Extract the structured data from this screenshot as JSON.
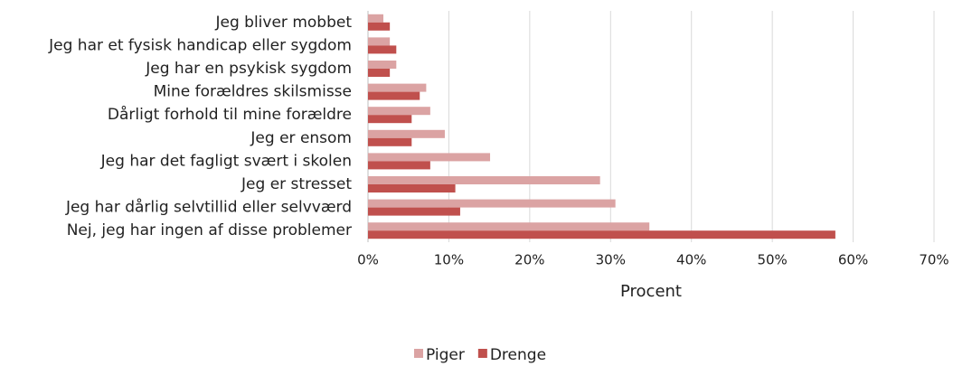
{
  "chart_data": {
    "type": "hbar",
    "categories": [
      "Jeg bliver mobbet",
      "Jeg har et fysisk handicap eller sygdom",
      "Jeg har en psykisk sygdom",
      "Mine forældres skilsmisse",
      "Dårligt forhold til mine forældre",
      "Jeg er ensom",
      "Jeg har det fagligt svært i skolen",
      "Jeg er stresset",
      "Jeg har dårlig selvtillid eller selvværd",
      "Nej, jeg har ingen af disse problemer"
    ],
    "series": [
      {
        "name": "Piger",
        "color": "#dba3a3",
        "values": [
          1.9,
          2.7,
          3.5,
          7.2,
          7.7,
          9.5,
          15.1,
          28.7,
          30.6,
          34.8
        ]
      },
      {
        "name": "Drenge",
        "color": "#c0504d",
        "values": [
          2.7,
          3.5,
          2.7,
          6.4,
          5.4,
          5.4,
          7.7,
          10.8,
          11.4,
          57.8
        ]
      }
    ],
    "xlabel": "Procent",
    "xlim": [
      0,
      70
    ],
    "xticks": [
      {
        "value": 0,
        "label": "0%"
      },
      {
        "value": 10,
        "label": "10%"
      },
      {
        "value": 20,
        "label": "20%"
      },
      {
        "value": 30,
        "label": "30%"
      },
      {
        "value": 40,
        "label": "40%"
      },
      {
        "value": 50,
        "label": "50%"
      },
      {
        "value": 60,
        "label": "60%"
      },
      {
        "value": 70,
        "label": "70%"
      }
    ],
    "grid": true,
    "legend": "bottom"
  }
}
